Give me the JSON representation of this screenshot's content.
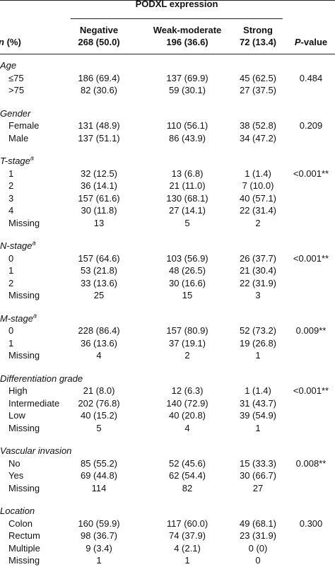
{
  "table": {
    "group_header": "PODXL expression",
    "stub_header": {
      "var": "n",
      "rest": " (%)"
    },
    "columns": [
      {
        "name": "Negative",
        "count": "268 (50.0)"
      },
      {
        "name": "Weak-moderate",
        "count": "196 (36.6)"
      },
      {
        "name": "Strong",
        "count": "72 (13.4)"
      }
    ],
    "p_header": {
      "var": "P",
      "rest": "-value"
    },
    "sections": [
      {
        "title": "Age",
        "p": "0.484",
        "rows": [
          [
            "≤75",
            "186 (69.4)",
            "137 (69.9)",
            "45 (62.5)"
          ],
          [
            ">75",
            "82 (30.6)",
            "59 (30.1)",
            "27 (37.5)"
          ]
        ]
      },
      {
        "title": "Gender",
        "p": "0.209",
        "rows": [
          [
            "Female",
            "131 (48.9)",
            "110 (56.1)",
            "38 (52.8)"
          ],
          [
            "Male",
            "137 (51.1)",
            "86 (43.9)",
            "34 (47.2)"
          ]
        ]
      },
      {
        "title": "T-stage",
        "note": "a",
        "p": "<0.001**",
        "rows": [
          [
            "1",
            "32 (12.5)",
            "13 (6.8)",
            "1 (1.4)"
          ],
          [
            "2",
            "36 (14.1)",
            "21 (11.0)",
            "7 (10.0)"
          ],
          [
            "3",
            "157 (61.6)",
            "130 (68.1)",
            "40 (57.1)"
          ],
          [
            "4",
            "30 (11.8)",
            "27 (14.1)",
            "22 (31.4)"
          ],
          [
            "Missing",
            "13",
            "5",
            "2"
          ]
        ]
      },
      {
        "title": "N-stage",
        "note": "a",
        "p": "<0.001**",
        "rows": [
          [
            "0",
            "157 (64.6)",
            "103 (56.9)",
            "26 (37.7)"
          ],
          [
            "1",
            "53 (21.8)",
            "48 (26.5)",
            "21 (30.4)"
          ],
          [
            "2",
            "33 (13.6)",
            "30 (16.6)",
            "22 (31.9)"
          ],
          [
            "Missing",
            "25",
            "15",
            "3"
          ]
        ]
      },
      {
        "title": "M-stage",
        "note": "a",
        "p": "0.009**",
        "rows": [
          [
            "0",
            "228 (86.4)",
            "157 (80.9)",
            "52 (73.2)"
          ],
          [
            "1",
            "36 (13.6)",
            "37 (19.1)",
            "19 (26.8)"
          ],
          [
            "Missing",
            "4",
            "2",
            "1"
          ]
        ]
      },
      {
        "title": "Differentiation grade",
        "p": "<0.001**",
        "rows": [
          [
            "High",
            "21 (8.0)",
            "12 (6.3)",
            "1 (1.4)"
          ],
          [
            "Intermediate",
            "202 (76.8)",
            "140 (72.9)",
            "31 (43.7)"
          ],
          [
            "Low",
            "40 (15.2)",
            "40 (20.8)",
            "39 (54.9)"
          ],
          [
            "Missing",
            "5",
            "4",
            "1"
          ]
        ]
      },
      {
        "title": "Vascular invasion",
        "p": "0.008**",
        "rows": [
          [
            "No",
            "85 (55.2)",
            "52 (45.6)",
            "15 (33.3)"
          ],
          [
            "Yes",
            "69 (44.8)",
            "62 (54.4)",
            "30 (66.7)"
          ],
          [
            "Missing",
            "114",
            "82",
            "27"
          ]
        ]
      },
      {
        "title": "Location",
        "p": "0.300",
        "rows": [
          [
            "Colon",
            "160 (59.9)",
            "117 (60.0)",
            "49 (68.1)"
          ],
          [
            "Rectum",
            "98 (36.7)",
            "74 (37.9)",
            "23 (31.9)"
          ],
          [
            "Multiple",
            "9 (3.4)",
            "4 (2.1)",
            "0 (0)"
          ],
          [
            "Missing",
            "1",
            "1",
            "0"
          ]
        ]
      }
    ]
  }
}
